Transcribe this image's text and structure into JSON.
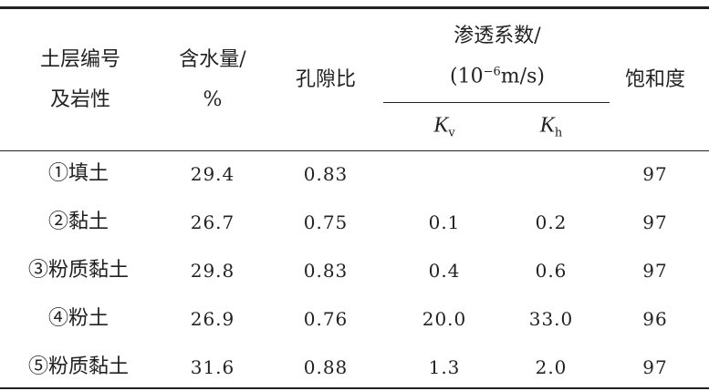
{
  "header": {
    "soil": [
      "土层编号",
      "及岩性"
    ],
    "water": [
      "含水量/",
      "%"
    ],
    "void": "孔隙比",
    "perm": {
      "title": "渗透系数/",
      "unit": [
        "(10",
        "−6",
        "m/s)"
      ],
      "kv": [
        "K",
        "v"
      ],
      "kh": [
        "K",
        "h"
      ]
    },
    "saturation": "饱和度"
  },
  "table": {
    "rows": [
      [
        "①填土",
        "29.4",
        "0.83",
        null,
        null,
        "97"
      ],
      [
        "②黏土",
        "26.7",
        "0.75",
        "0.1",
        "0.2",
        "97"
      ],
      [
        "③粉质黏土",
        "29.8",
        "0.83",
        "0.4",
        "0.6",
        "97"
      ],
      [
        "④粉土",
        "26.9",
        "0.76",
        "20.0",
        "33.0",
        "96"
      ],
      [
        "⑤粉质黏土",
        "31.6",
        "0.88",
        "1.3",
        "2.0",
        "97"
      ]
    ]
  }
}
